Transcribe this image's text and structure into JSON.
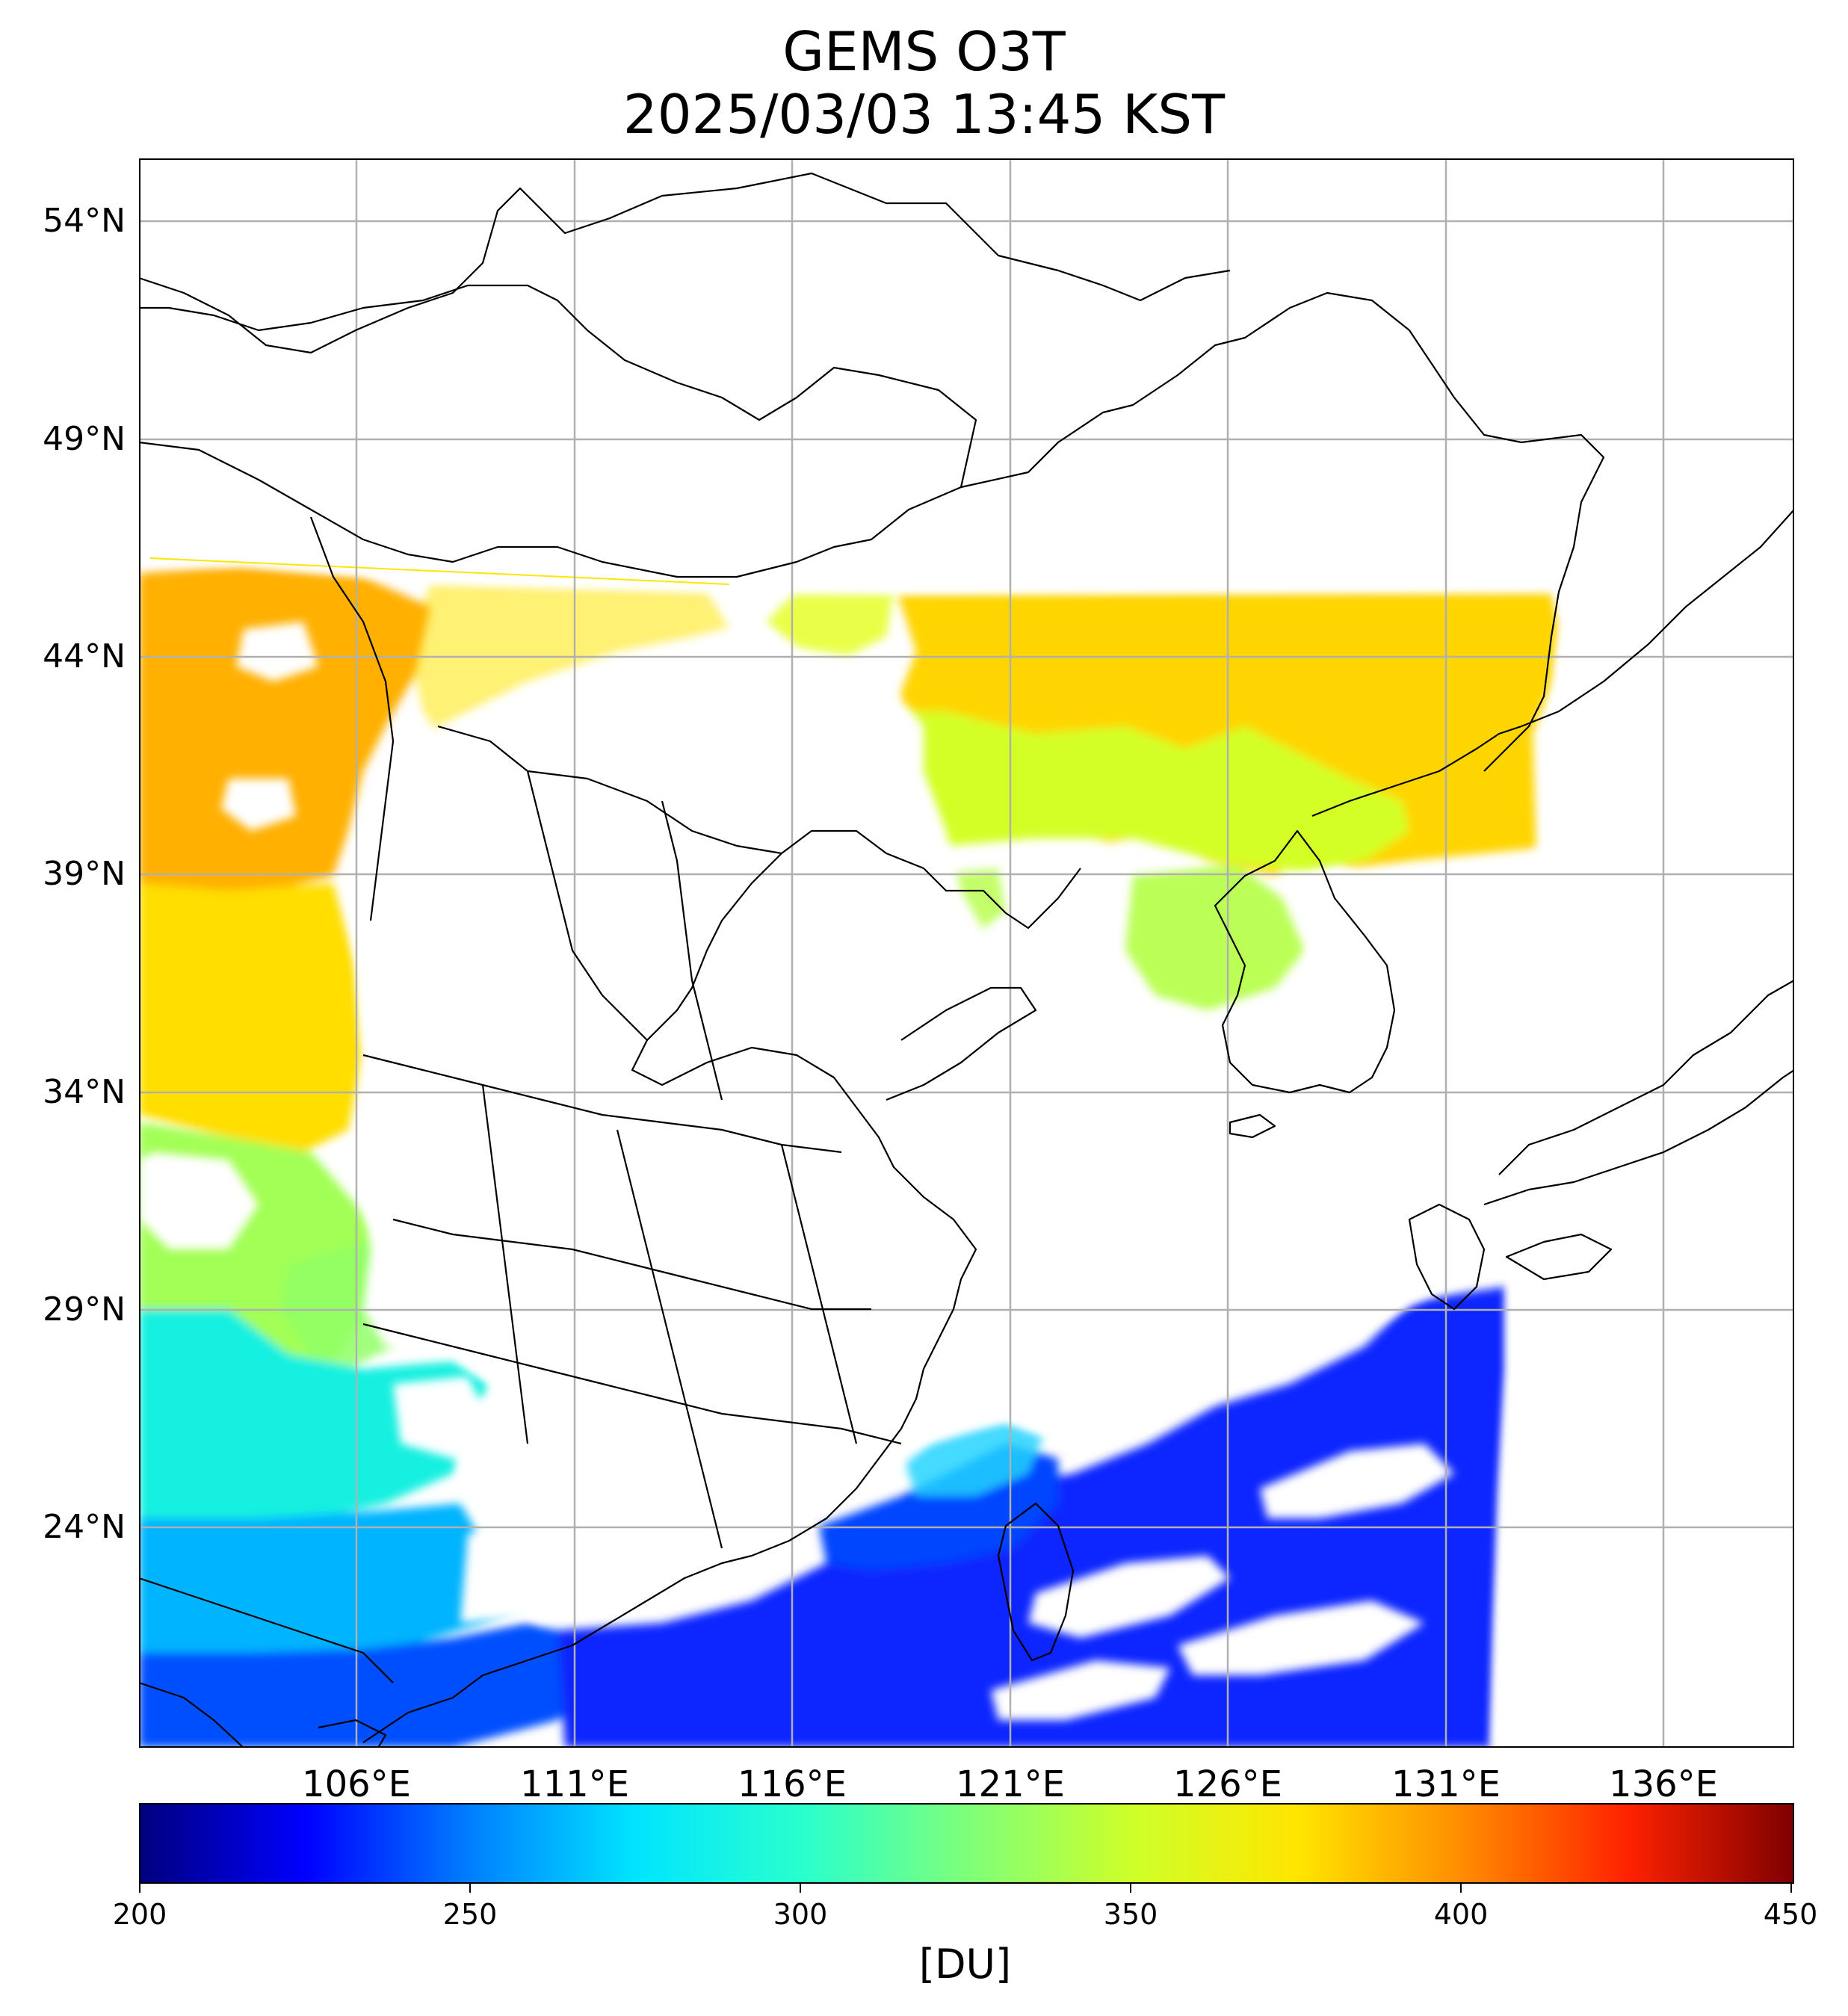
{
  "title": "GEMS O3T",
  "subtitle": "2025/03/03 13:45 KST",
  "map": {
    "extent": {
      "lon_min": 101,
      "lon_max": 139,
      "lat_min": 19.4,
      "lat_max": 55.5
    },
    "lat_labels": [
      {
        "value": 54,
        "label": "54°N"
      },
      {
        "value": 49,
        "label": "49°N"
      },
      {
        "value": 44,
        "label": "44°N"
      },
      {
        "value": 39,
        "label": "39°N"
      },
      {
        "value": 34,
        "label": "34°N"
      },
      {
        "value": 29,
        "label": "29°N"
      },
      {
        "value": 24,
        "label": "24°N"
      }
    ],
    "lon_labels": [
      {
        "value": 106,
        "label": "106°E"
      },
      {
        "value": 111,
        "label": "111°E"
      },
      {
        "value": 116,
        "label": "116°E"
      },
      {
        "value": 121,
        "label": "121°E"
      },
      {
        "value": 126,
        "label": "126°E"
      },
      {
        "value": 131,
        "label": "131°E"
      },
      {
        "value": 136,
        "label": "136°E"
      }
    ],
    "gridlines": true
  },
  "colorbar": {
    "min": 200,
    "max": 450,
    "ticks": [
      "200",
      "250",
      "300",
      "350",
      "400",
      "450"
    ],
    "units": "[DU]",
    "colormap": "jet",
    "colors": [
      "#00007f",
      "#0000ff",
      "#007fff",
      "#00e5ff",
      "#29ffce",
      "#7dff7a",
      "#ceff29",
      "#ffe600",
      "#ff8c00",
      "#ff2200",
      "#7f0000"
    ]
  }
}
